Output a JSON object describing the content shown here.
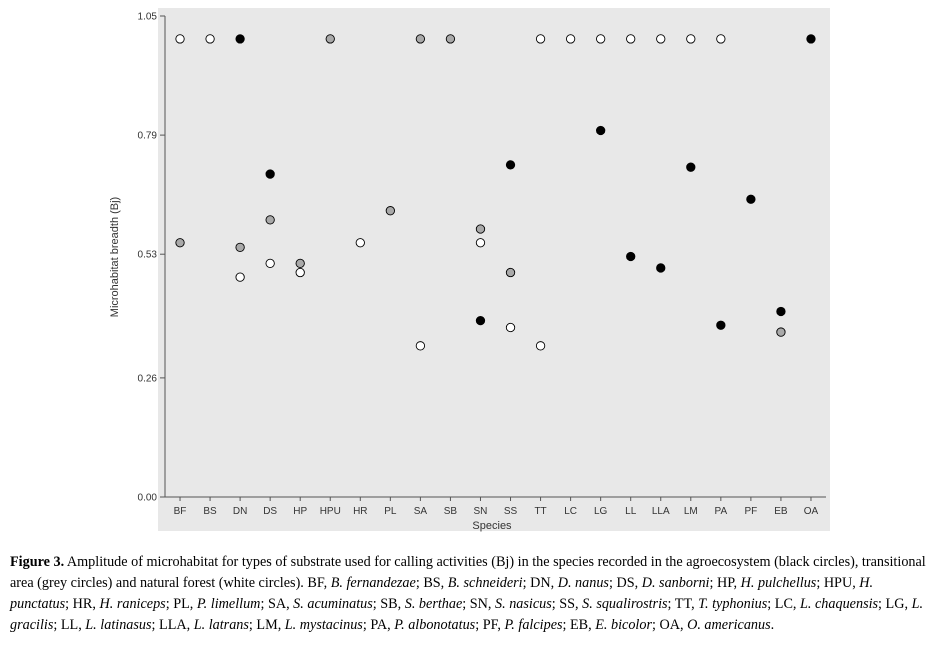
{
  "colors": {
    "plot_bg": "#e8e8e8",
    "black": "#000000",
    "grey": "#a9a9a9",
    "white": "#ffffff"
  },
  "chart_data": {
    "type": "scatter",
    "title": "",
    "xlabel": "Species",
    "ylabel": "Microhabitat breadth (Bj)",
    "ylim": [
      0,
      1.05
    ],
    "yticks": [
      "0.00",
      "0.26",
      "0.53",
      "0.79",
      "1.05"
    ],
    "categories": [
      "BF",
      "BS",
      "DN",
      "DS",
      "HP",
      "HPU",
      "HR",
      "PL",
      "SA",
      "SB",
      "SN",
      "SS",
      "TT",
      "LC",
      "LG",
      "LL",
      "LLA",
      "LM",
      "PA",
      "PF",
      "EB",
      "OA"
    ],
    "series": [
      {
        "habitat": "agroecosystem",
        "color": "black",
        "points": [
          [
            "DN",
            1.0
          ],
          [
            "DS",
            0.705
          ],
          [
            "SN",
            0.385
          ],
          [
            "SS",
            0.725
          ],
          [
            "LG",
            0.8
          ],
          [
            "LL",
            0.525
          ],
          [
            "LLA",
            0.5
          ],
          [
            "LM",
            0.72
          ],
          [
            "PA",
            0.375
          ],
          [
            "PF",
            0.65
          ],
          [
            "EB",
            0.405
          ],
          [
            "OA",
            1.0
          ]
        ]
      },
      {
        "habitat": "transitional",
        "color": "grey",
        "points": [
          [
            "BF",
            0.555
          ],
          [
            "DN",
            0.545
          ],
          [
            "DS",
            0.605
          ],
          [
            "HP",
            0.51
          ],
          [
            "PL",
            0.625
          ],
          [
            "SN",
            0.585
          ],
          [
            "SS",
            0.49
          ],
          [
            "EB",
            0.36
          ],
          [
            "HPU",
            1.0
          ],
          [
            "SA",
            1.0
          ],
          [
            "SB",
            1.0
          ]
        ]
      },
      {
        "habitat": "natural",
        "color": "white",
        "points": [
          [
            "BF",
            1.0
          ],
          [
            "BS",
            1.0
          ],
          [
            "DN",
            0.48
          ],
          [
            "DS",
            0.51
          ],
          [
            "HP",
            0.49
          ],
          [
            "HR",
            0.555
          ],
          [
            "SA",
            0.33
          ],
          [
            "SN",
            0.555
          ],
          [
            "SS",
            0.37
          ],
          [
            "TT",
            0.33
          ],
          [
            "TT",
            1.0
          ],
          [
            "LC",
            1.0
          ],
          [
            "LG",
            1.0
          ],
          [
            "LL",
            1.0
          ],
          [
            "LLA",
            1.0
          ],
          [
            "LM",
            1.0
          ],
          [
            "PA",
            1.0
          ]
        ]
      }
    ]
  },
  "caption": {
    "label": "Figure 3.",
    "text": "Amplitude of microhabitat for types of substrate used for calling activities (Bj) in the species recorded in the agroecosystem (black circles), transitional area (grey circles) and natural forest (white circles).",
    "abbreviations": [
      [
        "BF",
        "B. fernandezae"
      ],
      [
        "BS",
        "B. schneideri"
      ],
      [
        "DN",
        "D. nanus"
      ],
      [
        "DS",
        "D. sanborni"
      ],
      [
        "HP",
        "H. pulchellus"
      ],
      [
        "HPU",
        "H. punctatus"
      ],
      [
        "HR",
        "H. raniceps"
      ],
      [
        "PL",
        "P. limellum"
      ],
      [
        "SA",
        "S. acuminatus"
      ],
      [
        "SB",
        "S. berthae"
      ],
      [
        "SN",
        "S. nasicus"
      ],
      [
        "SS",
        "S. squalirostris"
      ],
      [
        "TT",
        "T. typhonius"
      ],
      [
        "LC",
        "L. chaquensis"
      ],
      [
        "LG",
        "L. gracilis"
      ],
      [
        "LL",
        "L. latinasus"
      ],
      [
        "LLA",
        "L. latrans"
      ],
      [
        "LM",
        "L. mystacinus"
      ],
      [
        "PA",
        "P. albonotatus"
      ],
      [
        "PF",
        "P. falcipes"
      ],
      [
        "EB",
        "E. bicolor"
      ],
      [
        "OA",
        "O. americanus"
      ]
    ]
  }
}
